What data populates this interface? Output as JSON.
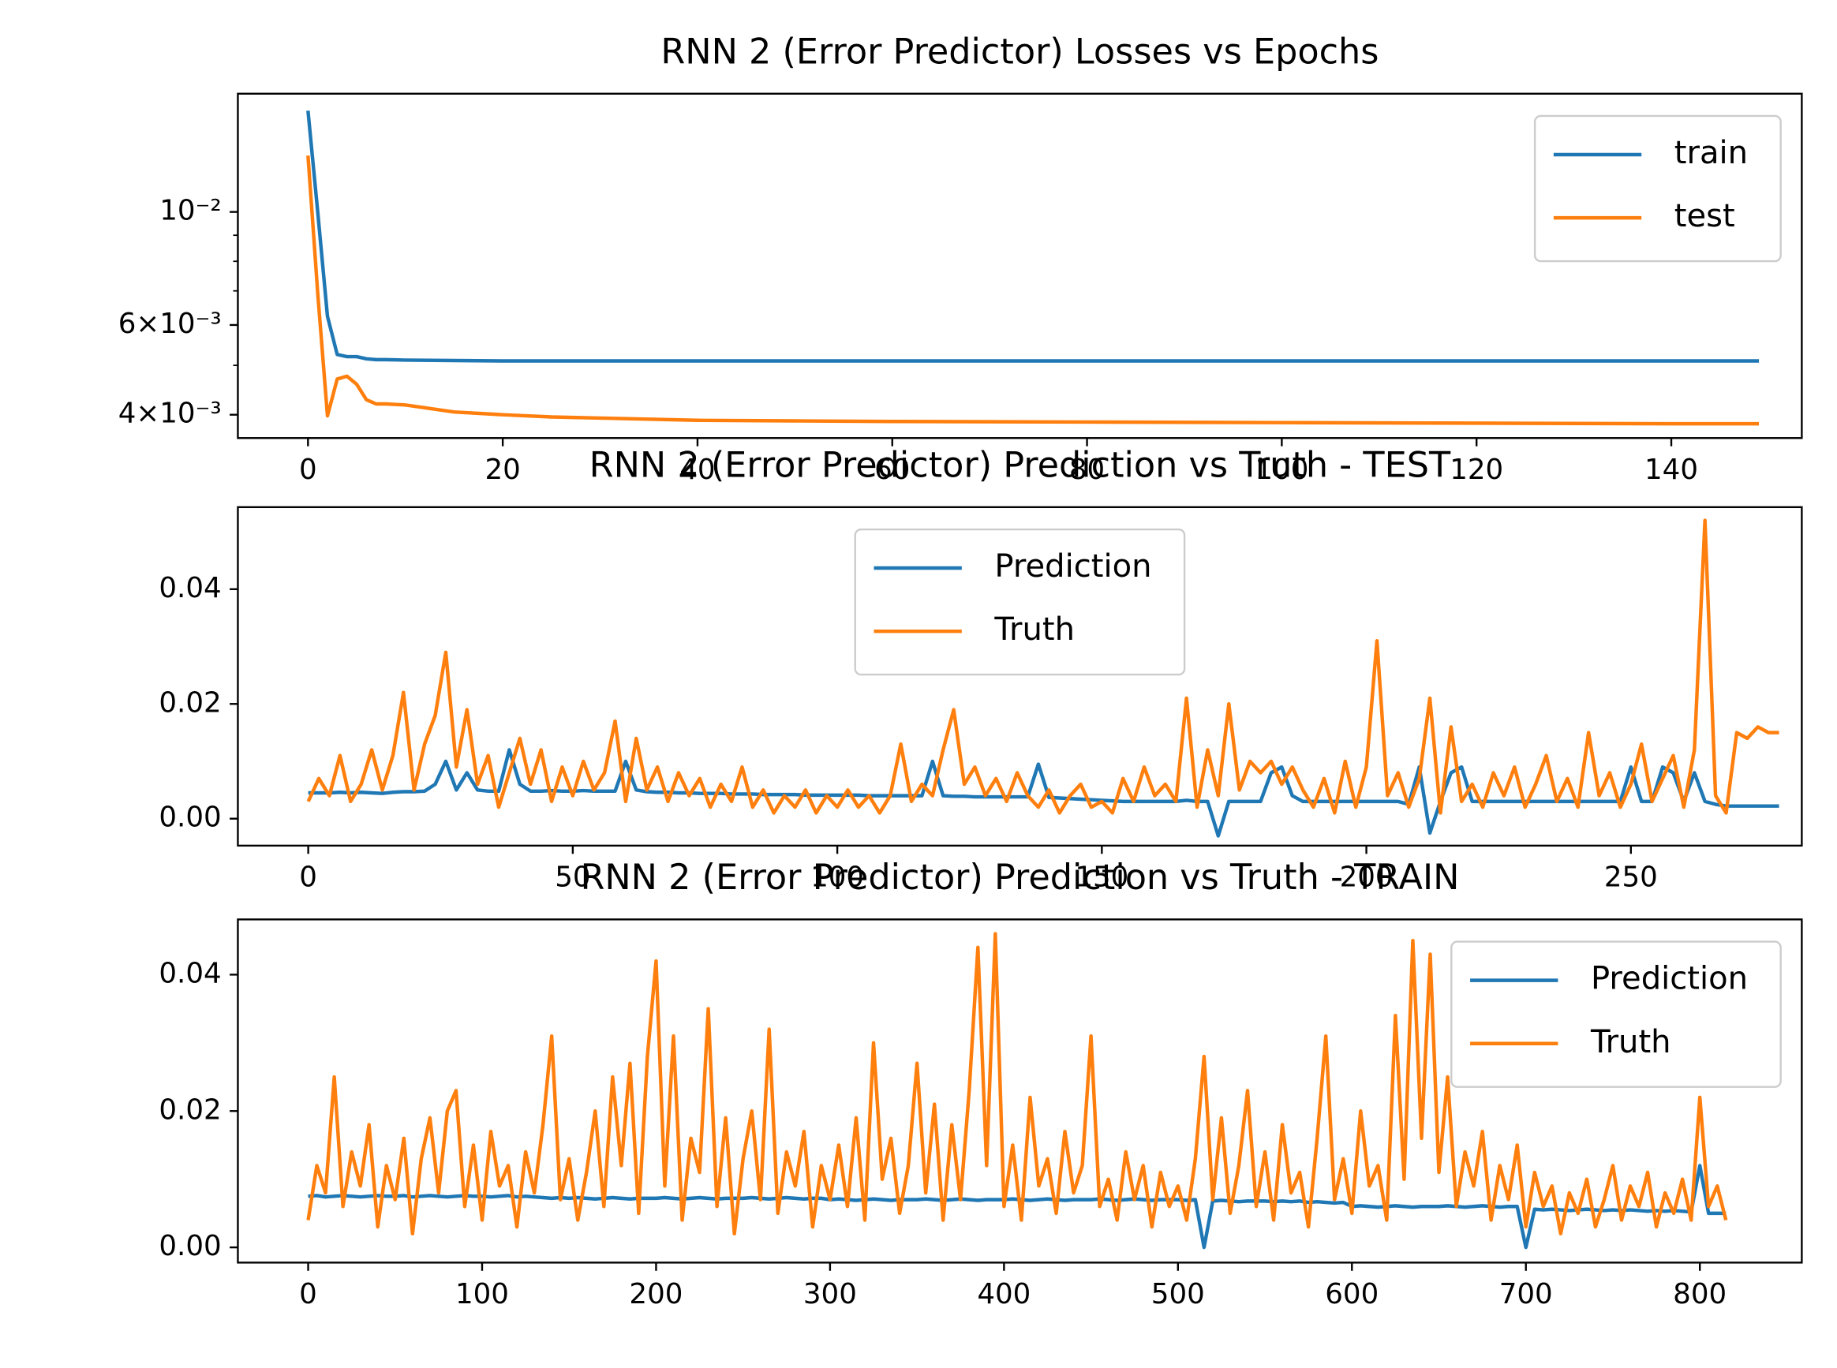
{
  "chart_data": [
    {
      "type": "line",
      "title": "RNN 2 (Error Predictor) Losses vs Epochs",
      "yscale": "log",
      "legend": "upper right",
      "x": [
        0,
        1,
        2,
        3,
        4,
        5,
        6,
        7,
        8,
        10,
        15,
        20,
        25,
        30,
        40,
        50,
        60,
        80,
        100,
        120,
        140,
        149
      ],
      "series": [
        {
          "name": "train",
          "color": "#1f77b4",
          "values": [
            0.0158,
            0.01,
            0.00624,
            0.00525,
            0.0052,
            0.0052,
            0.00515,
            0.00513,
            0.00513,
            0.00512,
            0.00511,
            0.0051,
            0.0051,
            0.0051,
            0.0051,
            0.0051,
            0.0051,
            0.0051,
            0.0051,
            0.0051,
            0.0051,
            0.0051
          ]
        },
        {
          "name": "test",
          "color": "#ff7f0e",
          "values": [
            0.0129,
            0.00693,
            0.00398,
            0.0047,
            0.00476,
            0.00459,
            0.00428,
            0.0042,
            0.0042,
            0.00418,
            0.00405,
            0.004,
            0.00396,
            0.00394,
            0.0039,
            0.00389,
            0.00388,
            0.00387,
            0.00386,
            0.00385,
            0.00384,
            0.00384
          ]
        }
      ],
      "xlim": [
        -7.2,
        153.4
      ],
      "ylim": [
        0.0036,
        0.01706
      ],
      "xticks": [
        0,
        20,
        40,
        60,
        80,
        100,
        120,
        140
      ],
      "yticks": [
        {
          "value": 0.01,
          "label": "10⁻²"
        },
        {
          "value": 0.006,
          "label": "6×10⁻³"
        },
        {
          "value": 0.004,
          "label": "4×10⁻³"
        }
      ],
      "yminorticks": [
        0.005,
        0.007,
        0.008,
        0.009
      ]
    },
    {
      "type": "line",
      "title": "RNN 2 (Error Predictor) Prediction vs Truth - TEST",
      "legend": "upper center",
      "x": [
        0,
        2,
        4,
        6,
        8,
        10,
        12,
        14,
        16,
        18,
        20,
        22,
        24,
        26,
        28,
        30,
        32,
        34,
        36,
        38,
        40,
        42,
        44,
        46,
        48,
        50,
        52,
        54,
        56,
        58,
        60,
        62,
        64,
        66,
        68,
        70,
        72,
        74,
        76,
        78,
        80,
        82,
        84,
        86,
        88,
        90,
        92,
        94,
        96,
        98,
        100,
        102,
        104,
        106,
        108,
        110,
        112,
        114,
        116,
        118,
        120,
        122,
        124,
        126,
        128,
        130,
        132,
        134,
        136,
        138,
        140,
        142,
        144,
        146,
        148,
        150,
        152,
        154,
        156,
        158,
        160,
        162,
        164,
        166,
        168,
        170,
        172,
        174,
        176,
        178,
        180,
        182,
        184,
        186,
        188,
        190,
        192,
        194,
        196,
        198,
        200,
        202,
        204,
        206,
        208,
        210,
        212,
        214,
        216,
        218,
        220,
        222,
        224,
        226,
        228,
        230,
        232,
        234,
        236,
        238,
        240,
        242,
        244,
        246,
        248,
        250,
        252,
        254,
        256,
        258,
        260,
        262,
        264,
        266,
        268,
        270,
        272,
        274,
        276,
        278
      ],
      "series": [
        {
          "name": "Prediction",
          "color": "#1f77b4",
          "values": [
            0.0045,
            0.0045,
            0.0045,
            0.0046,
            0.0045,
            0.0046,
            0.0045,
            0.0044,
            0.0046,
            0.0047,
            0.0047,
            0.0048,
            0.006,
            0.01,
            0.005,
            0.008,
            0.005,
            0.0048,
            0.0048,
            0.012,
            0.006,
            0.0048,
            0.0048,
            0.0049,
            0.0048,
            0.0048,
            0.0049,
            0.0048,
            0.0048,
            0.0048,
            0.01,
            0.005,
            0.0047,
            0.0046,
            0.0046,
            0.0045,
            0.0045,
            0.0044,
            0.0044,
            0.0044,
            0.0043,
            0.0043,
            0.0043,
            0.0042,
            0.0042,
            0.0042,
            0.0042,
            0.0041,
            0.0041,
            0.0041,
            0.0041,
            0.0041,
            0.0041,
            0.004,
            0.004,
            0.004,
            0.004,
            0.004,
            0.004,
            0.01,
            0.004,
            0.0039,
            0.0039,
            0.0038,
            0.0038,
            0.0038,
            0.0038,
            0.0038,
            0.0038,
            0.0095,
            0.0037,
            0.0036,
            0.0035,
            0.0034,
            0.0033,
            0.0032,
            0.0031,
            0.003,
            0.003,
            0.003,
            0.003,
            0.003,
            0.003,
            0.0032,
            0.003,
            0.003,
            -0.003,
            0.003,
            0.003,
            0.003,
            0.003,
            0.008,
            0.009,
            0.004,
            0.003,
            0.003,
            0.003,
            0.003,
            0.003,
            0.003,
            0.003,
            0.003,
            0.003,
            0.003,
            0.0025,
            0.009,
            -0.0025,
            0.003,
            0.008,
            0.009,
            0.003,
            0.003,
            0.003,
            0.003,
            0.003,
            0.003,
            0.003,
            0.003,
            0.003,
            0.003,
            0.003,
            0.003,
            0.003,
            0.003,
            0.003,
            0.009,
            0.003,
            0.003,
            0.009,
            0.008,
            0.003,
            0.008,
            0.003,
            0.0025,
            0.0022,
            0.0022,
            0.0022,
            0.0022,
            0.0022,
            0.0022
          ]
        },
        {
          "name": "Truth",
          "color": "#ff7f0e",
          "values": [
            0.003,
            0.007,
            0.004,
            0.011,
            0.003,
            0.006,
            0.012,
            0.005,
            0.011,
            0.022,
            0.005,
            0.013,
            0.018,
            0.029,
            0.009,
            0.019,
            0.006,
            0.011,
            0.002,
            0.008,
            0.014,
            0.006,
            0.012,
            0.003,
            0.009,
            0.004,
            0.01,
            0.005,
            0.008,
            0.017,
            0.003,
            0.014,
            0.005,
            0.009,
            0.003,
            0.008,
            0.004,
            0.007,
            0.002,
            0.006,
            0.003,
            0.009,
            0.002,
            0.005,
            0.001,
            0.004,
            0.002,
            0.005,
            0.001,
            0.004,
            0.002,
            0.005,
            0.002,
            0.004,
            0.001,
            0.004,
            0.013,
            0.003,
            0.006,
            0.004,
            0.012,
            0.019,
            0.006,
            0.009,
            0.004,
            0.007,
            0.003,
            0.008,
            0.004,
            0.002,
            0.005,
            0.001,
            0.004,
            0.006,
            0.002,
            0.003,
            0.001,
            0.007,
            0.003,
            0.009,
            0.004,
            0.006,
            0.003,
            0.021,
            0.002,
            0.012,
            0.004,
            0.02,
            0.005,
            0.01,
            0.008,
            0.01,
            0.006,
            0.009,
            0.005,
            0.002,
            0.007,
            0.001,
            0.01,
            0.002,
            0.009,
            0.031,
            0.004,
            0.008,
            0.002,
            0.007,
            0.021,
            0.001,
            0.016,
            0.003,
            0.006,
            0.002,
            0.008,
            0.004,
            0.009,
            0.002,
            0.006,
            0.011,
            0.003,
            0.007,
            0.002,
            0.015,
            0.004,
            0.008,
            0.002,
            0.006,
            0.013,
            0.003,
            0.007,
            0.011,
            0.002,
            0.012,
            0.052,
            0.004,
            0.001,
            0.015,
            0.014,
            0.016,
            0.015,
            0.015
          ]
        }
      ],
      "xlim": [
        -13.3,
        282.3
      ],
      "ylim": [
        -0.0047,
        0.0543
      ],
      "xticks": [
        0,
        50,
        100,
        150,
        200,
        250
      ],
      "yticks": [
        {
          "value": 0,
          "label": "0.00"
        },
        {
          "value": 0.02,
          "label": "0.02"
        },
        {
          "value": 0.04,
          "label": "0.04"
        }
      ]
    },
    {
      "type": "line",
      "title": "RNN 2 (Error Predictor) Prediction vs Truth - TRAIN",
      "legend": "upper right",
      "x": [
        0,
        5,
        10,
        15,
        20,
        25,
        30,
        35,
        40,
        45,
        50,
        55,
        60,
        65,
        70,
        75,
        80,
        85,
        90,
        95,
        100,
        105,
        110,
        115,
        120,
        125,
        130,
        135,
        140,
        145,
        150,
        155,
        160,
        165,
        170,
        175,
        180,
        185,
        190,
        195,
        200,
        205,
        210,
        215,
        220,
        225,
        230,
        235,
        240,
        245,
        250,
        255,
        260,
        265,
        270,
        275,
        280,
        285,
        290,
        295,
        300,
        305,
        310,
        315,
        320,
        325,
        330,
        335,
        340,
        345,
        350,
        355,
        360,
        365,
        370,
        375,
        380,
        385,
        390,
        395,
        400,
        405,
        410,
        415,
        420,
        425,
        430,
        435,
        440,
        445,
        450,
        455,
        460,
        465,
        470,
        475,
        480,
        485,
        490,
        495,
        500,
        505,
        510,
        515,
        520,
        525,
        530,
        535,
        540,
        545,
        550,
        555,
        560,
        565,
        570,
        575,
        580,
        585,
        590,
        595,
        600,
        605,
        610,
        615,
        620,
        625,
        630,
        635,
        640,
        645,
        650,
        655,
        660,
        665,
        670,
        675,
        680,
        685,
        690,
        695,
        700,
        705,
        710,
        715,
        720,
        725,
        730,
        735,
        740,
        745,
        750,
        755,
        760,
        765,
        770,
        775,
        780,
        785,
        790,
        795,
        800,
        805,
        810,
        815
      ],
      "series": [
        {
          "name": "Prediction",
          "color": "#1f77b4",
          "values": [
            0.0075,
            0.0076,
            0.0074,
            0.0075,
            0.0076,
            0.0075,
            0.0074,
            0.0075,
            0.0076,
            0.0075,
            0.0075,
            0.0076,
            0.0074,
            0.0075,
            0.0076,
            0.0075,
            0.0074,
            0.0075,
            0.0076,
            0.0075,
            0.0075,
            0.0074,
            0.0075,
            0.0076,
            0.0074,
            0.0075,
            0.0074,
            0.0073,
            0.0072,
            0.0073,
            0.0072,
            0.0073,
            0.0072,
            0.0071,
            0.0072,
            0.0073,
            0.0072,
            0.0071,
            0.0072,
            0.0072,
            0.0072,
            0.0073,
            0.0072,
            0.0071,
            0.0072,
            0.0073,
            0.0072,
            0.0071,
            0.0072,
            0.0072,
            0.0072,
            0.0073,
            0.0072,
            0.0071,
            0.0072,
            0.0073,
            0.0072,
            0.0071,
            0.0072,
            0.0072,
            0.007,
            0.0071,
            0.007,
            0.0069,
            0.007,
            0.0071,
            0.007,
            0.0069,
            0.007,
            0.007,
            0.007,
            0.0071,
            0.007,
            0.0069,
            0.007,
            0.0071,
            0.007,
            0.0069,
            0.007,
            0.007,
            0.007,
            0.0071,
            0.007,
            0.0069,
            0.007,
            0.0071,
            0.007,
            0.0069,
            0.007,
            0.007,
            0.007,
            0.0071,
            0.007,
            0.0069,
            0.007,
            0.0071,
            0.007,
            0.0069,
            0.007,
            0.007,
            0.007,
            0.0069,
            0.007,
            0.0,
            0.0068,
            0.0069,
            0.0068,
            0.0067,
            0.0068,
            0.0068,
            0.0068,
            0.0067,
            0.0068,
            0.0067,
            0.0068,
            0.0066,
            0.0067,
            0.0066,
            0.0065,
            0.0066,
            0.006,
            0.0061,
            0.006,
            0.0059,
            0.006,
            0.0061,
            0.006,
            0.0059,
            0.006,
            0.006,
            0.006,
            0.0061,
            0.006,
            0.0059,
            0.006,
            0.0061,
            0.006,
            0.0059,
            0.006,
            0.006,
            0.0,
            0.0056,
            0.0055,
            0.0056,
            0.0055,
            0.0054,
            0.0055,
            0.0056,
            0.0055,
            0.0054,
            0.0055,
            0.0054,
            0.0055,
            0.0054,
            0.0053,
            0.0054,
            0.0053,
            0.0054,
            0.0053,
            0.0052,
            0.012,
            0.005,
            0.005,
            0.005
          ]
        },
        {
          "name": "Truth",
          "color": "#ff7f0e",
          "values": [
            0.004,
            0.012,
            0.008,
            0.025,
            0.006,
            0.014,
            0.009,
            0.018,
            0.003,
            0.012,
            0.007,
            0.016,
            0.002,
            0.013,
            0.019,
            0.008,
            0.02,
            0.023,
            0.006,
            0.015,
            0.004,
            0.017,
            0.009,
            0.012,
            0.003,
            0.014,
            0.008,
            0.018,
            0.031,
            0.007,
            0.013,
            0.004,
            0.011,
            0.02,
            0.006,
            0.025,
            0.012,
            0.027,
            0.005,
            0.028,
            0.042,
            0.009,
            0.031,
            0.004,
            0.016,
            0.011,
            0.035,
            0.006,
            0.019,
            0.002,
            0.013,
            0.02,
            0.007,
            0.032,
            0.005,
            0.014,
            0.009,
            0.017,
            0.003,
            0.012,
            0.007,
            0.015,
            0.006,
            0.019,
            0.004,
            0.03,
            0.01,
            0.016,
            0.005,
            0.012,
            0.027,
            0.008,
            0.021,
            0.004,
            0.018,
            0.007,
            0.023,
            0.044,
            0.012,
            0.046,
            0.006,
            0.015,
            0.004,
            0.022,
            0.009,
            0.013,
            0.005,
            0.017,
            0.008,
            0.012,
            0.031,
            0.006,
            0.01,
            0.004,
            0.014,
            0.007,
            0.012,
            0.003,
            0.011,
            0.006,
            0.009,
            0.004,
            0.013,
            0.028,
            0.007,
            0.019,
            0.005,
            0.012,
            0.023,
            0.006,
            0.014,
            0.004,
            0.018,
            0.008,
            0.011,
            0.003,
            0.016,
            0.031,
            0.007,
            0.013,
            0.005,
            0.02,
            0.009,
            0.012,
            0.004,
            0.034,
            0.01,
            0.045,
            0.016,
            0.043,
            0.011,
            0.025,
            0.006,
            0.014,
            0.009,
            0.017,
            0.004,
            0.012,
            0.007,
            0.015,
            0.003,
            0.011,
            0.006,
            0.009,
            0.002,
            0.008,
            0.005,
            0.01,
            0.003,
            0.007,
            0.012,
            0.004,
            0.009,
            0.006,
            0.011,
            0.003,
            0.008,
            0.005,
            0.01,
            0.004,
            0.022,
            0.006,
            0.009,
            0.004
          ]
        }
      ],
      "xlim": [
        -40.4,
        858.6
      ],
      "ylim": [
        -0.00223,
        0.0481
      ],
      "xticks": [
        0,
        100,
        200,
        300,
        400,
        500,
        600,
        700,
        800
      ],
      "yticks": [
        {
          "value": 0,
          "label": "0.00"
        },
        {
          "value": 0.02,
          "label": "0.02"
        },
        {
          "value": 0.04,
          "label": "0.04"
        }
      ]
    }
  ]
}
